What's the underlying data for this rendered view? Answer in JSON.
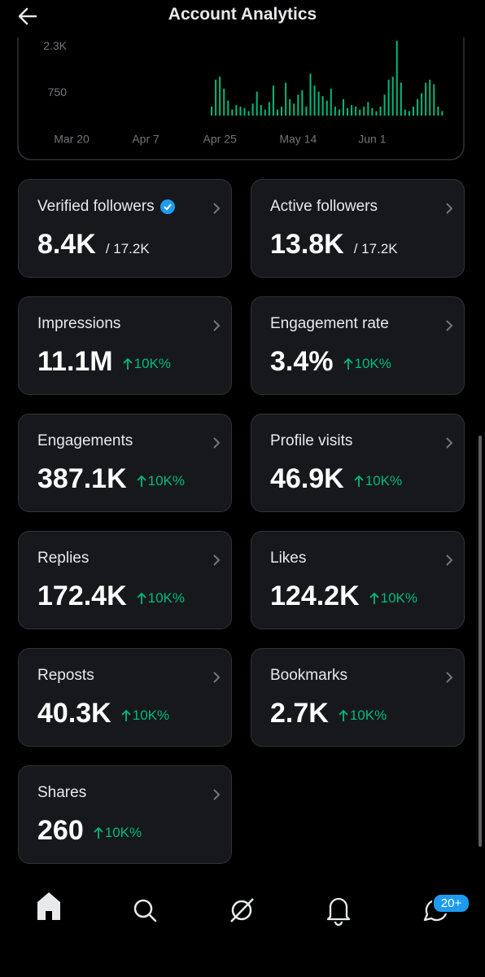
{
  "header": {
    "title": "Account Analytics"
  },
  "chart": {
    "type": "bar",
    "categories": [
      "Mar 20",
      null,
      null,
      null,
      null,
      null,
      null,
      null,
      null,
      null,
      null,
      null,
      null,
      null,
      null,
      null,
      null,
      null,
      "Apr 7",
      null,
      null,
      null,
      null,
      null,
      null,
      null,
      null,
      null,
      null,
      null,
      null,
      null,
      null,
      null,
      null,
      null,
      "Apr 25",
      null,
      null,
      null,
      null,
      null,
      null,
      null,
      null,
      null,
      null,
      null,
      null,
      null,
      null,
      null,
      null,
      null,
      null,
      "May 14",
      null,
      null,
      null,
      null,
      null,
      null,
      null,
      null,
      null,
      null,
      null,
      null,
      null,
      null,
      null,
      null,
      null,
      "Jun 1",
      null,
      null,
      null,
      null,
      null,
      null,
      null,
      null,
      null,
      null,
      null,
      null,
      null,
      null,
      null,
      null,
      null,
      null
    ],
    "values": [
      0,
      0,
      0,
      0,
      0,
      0,
      0,
      0,
      0,
      0,
      0,
      0,
      0,
      0,
      0,
      0,
      0,
      0,
      0,
      0,
      0,
      0,
      0,
      0,
      0,
      0,
      0,
      0,
      0,
      0,
      0,
      0,
      0,
      0,
      300,
      1200,
      1300,
      900,
      500,
      200,
      350,
      300,
      250,
      150,
      400,
      800,
      350,
      200,
      450,
      1000,
      200,
      300,
      1100,
      550,
      400,
      700,
      850,
      300,
      1400,
      1000,
      800,
      650,
      500,
      900,
      300,
      200,
      550,
      250,
      350,
      300,
      200,
      300,
      450,
      250,
      150,
      300,
      700,
      1200,
      1300,
      2500,
      1100,
      200,
      150,
      300,
      550,
      750,
      1100,
      1200,
      1050,
      300,
      150,
      0
    ],
    "color": "#00ba7c",
    "ylim": [
      0,
      2550
    ],
    "yticks": [
      750,
      {
        "value": 2300,
        "label": "2.3K"
      }
    ]
  },
  "cards": [
    {
      "label": "Verified followers",
      "value": "8.4K",
      "total": "/ 17.2K"
    },
    {
      "label": "Active followers",
      "value": "13.8K",
      "total": "/ 17.2K"
    },
    {
      "label": "Impressions",
      "value": "11.1M",
      "change": "10K%"
    },
    {
      "label": "Engagement rate",
      "value": "3.4%",
      "change": "10K%"
    },
    {
      "label": "Engagements",
      "value": "387.1K",
      "change": "10K%"
    },
    {
      "label": "Profile visits",
      "value": "46.9K",
      "change": "10K%"
    },
    {
      "label": "Replies",
      "value": "172.4K",
      "change": "10K%"
    },
    {
      "label": "Likes",
      "value": "124.2K",
      "change": "10K%"
    },
    {
      "label": "Reposts",
      "value": "40.3K",
      "change": "10K%"
    },
    {
      "label": "Bookmarks",
      "value": "2.7K",
      "change": "10K%"
    },
    {
      "label": "Shares",
      "value": "260",
      "change": "10K%"
    }
  ],
  "nav": {
    "badge": "20+"
  }
}
